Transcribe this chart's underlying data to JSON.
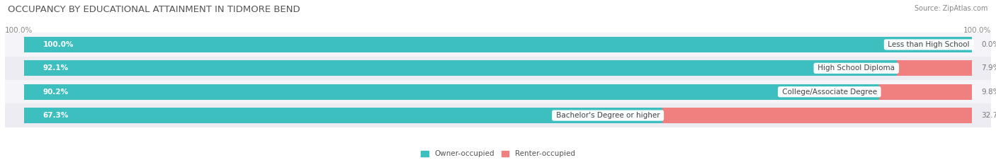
{
  "title": "OCCUPANCY BY EDUCATIONAL ATTAINMENT IN TIDMORE BEND",
  "source": "Source: ZipAtlas.com",
  "categories": [
    "Less than High School",
    "High School Diploma",
    "College/Associate Degree",
    "Bachelor's Degree or higher"
  ],
  "owner_values": [
    100.0,
    92.1,
    90.2,
    67.3
  ],
  "renter_values": [
    0.0,
    7.9,
    9.8,
    32.7
  ],
  "owner_color": "#3DBFBF",
  "renter_color": "#F08080",
  "row_bg_even": "#ECECF2",
  "row_bg_odd": "#F5F5F9",
  "title_fontsize": 9.5,
  "label_fontsize": 7.5,
  "tick_fontsize": 7.5,
  "source_fontsize": 7,
  "bar_height": 0.65,
  "total_width": 100.0
}
